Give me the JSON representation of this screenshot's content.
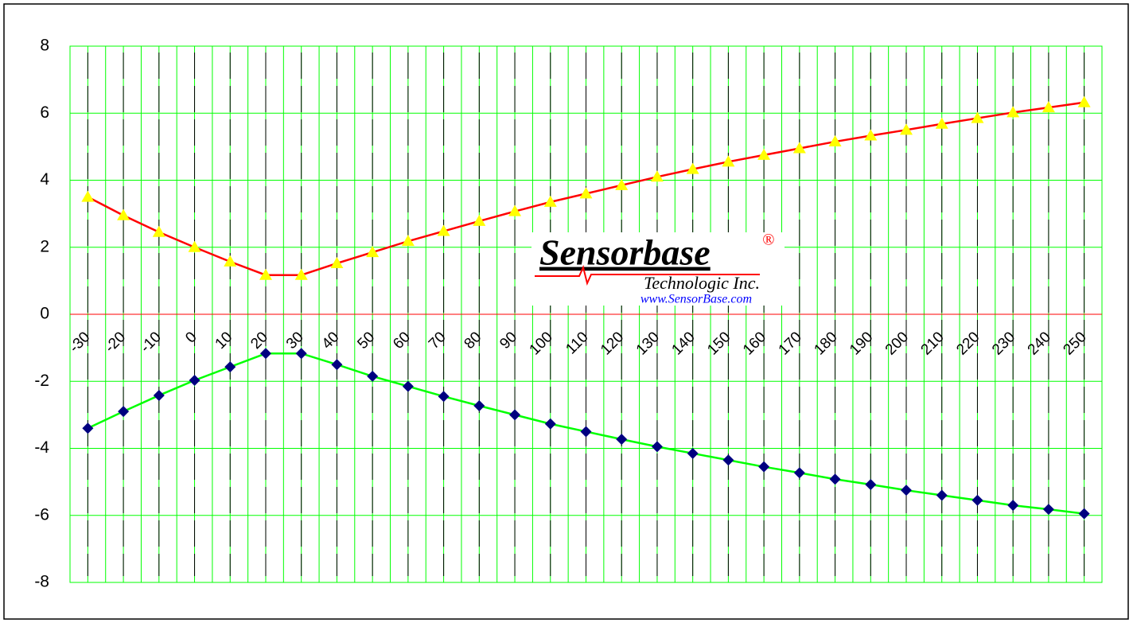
{
  "chart_data": {
    "type": "line",
    "categories": [
      "-30",
      "-20",
      "-10",
      "0",
      "10",
      "20",
      "30",
      "40",
      "50",
      "60",
      "70",
      "80",
      "90",
      "100",
      "110",
      "120",
      "130",
      "140",
      "150",
      "160",
      "170",
      "180",
      "190",
      "200",
      "210",
      "220",
      "230",
      "240",
      "250"
    ],
    "series": [
      {
        "color": "#ff0000",
        "marker_color": "#ffff00",
        "marker": "triangle",
        "values": [
          3.5,
          2.95,
          2.45,
          2.0,
          1.57,
          1.17,
          1.17,
          1.52,
          1.85,
          2.18,
          2.48,
          2.78,
          3.07,
          3.35,
          3.6,
          3.85,
          4.1,
          4.33,
          4.55,
          4.75,
          4.95,
          5.15,
          5.33,
          5.5,
          5.68,
          5.85,
          6.02,
          6.17,
          6.32
        ]
      },
      {
        "color": "#00ff00",
        "marker_color": "#000080",
        "marker": "diamond",
        "values": [
          -3.4,
          -2.9,
          -2.42,
          -1.97,
          -1.57,
          -1.17,
          -1.17,
          -1.5,
          -1.85,
          -2.15,
          -2.45,
          -2.73,
          -3.0,
          -3.27,
          -3.5,
          -3.73,
          -3.95,
          -4.15,
          -4.35,
          -4.55,
          -4.73,
          -4.92,
          -5.08,
          -5.25,
          -5.4,
          -5.55,
          -5.7,
          -5.82,
          -5.95
        ]
      }
    ],
    "ylim": [
      -8,
      8
    ],
    "yticks": [
      -8,
      -6,
      -4,
      -2,
      0,
      2,
      4,
      6,
      8
    ],
    "grid": true,
    "logo": {
      "name": "Sensorbase",
      "mark": "®",
      "company": "Technologic Inc.",
      "url": "www.SensorBase.com"
    }
  }
}
